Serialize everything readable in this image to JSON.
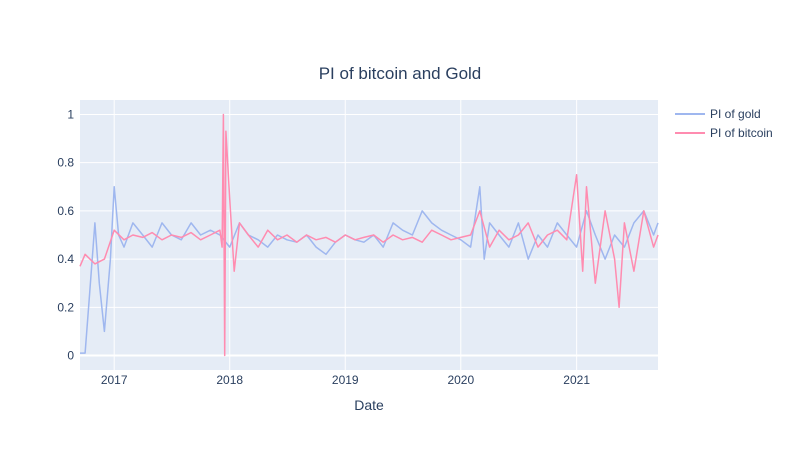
{
  "chart_data": {
    "type": "line",
    "title": "PI of bitcoin and Gold",
    "xlabel": "Date",
    "ylabel": "",
    "x_range": [
      "2016-09-15",
      "2021-09-15"
    ],
    "ylim": [
      -0.06,
      1.06
    ],
    "x_ticks": [
      {
        "date": "2017-01-01",
        "label": "2017"
      },
      {
        "date": "2018-01-01",
        "label": "2018"
      },
      {
        "date": "2019-01-01",
        "label": "2019"
      },
      {
        "date": "2020-01-01",
        "label": "2020"
      },
      {
        "date": "2021-01-01",
        "label": "2021"
      }
    ],
    "y_ticks": [
      0,
      0.2,
      0.4,
      0.6,
      0.8,
      1
    ],
    "grid": true,
    "legend_position": "top-right",
    "background": "#e5ecf6",
    "series": [
      {
        "name": "PI of gold",
        "color": "#9fb7ef",
        "x": [
          "2016-09-15",
          "2016-10-01",
          "2016-10-15",
          "2016-11-01",
          "2016-11-15",
          "2016-12-01",
          "2016-12-20",
          "2017-01-01",
          "2017-01-15",
          "2017-02-01",
          "2017-03-01",
          "2017-04-01",
          "2017-05-01",
          "2017-06-01",
          "2017-07-01",
          "2017-08-01",
          "2017-09-01",
          "2017-10-01",
          "2017-11-01",
          "2017-12-01",
          "2018-01-01",
          "2018-02-01",
          "2018-03-01",
          "2018-04-01",
          "2018-05-01",
          "2018-06-01",
          "2018-07-01",
          "2018-08-01",
          "2018-09-01",
          "2018-10-01",
          "2018-11-01",
          "2018-12-01",
          "2019-01-01",
          "2019-02-01",
          "2019-03-01",
          "2019-04-01",
          "2019-05-01",
          "2019-06-01",
          "2019-07-01",
          "2019-08-01",
          "2019-09-01",
          "2019-10-01",
          "2019-11-01",
          "2019-12-01",
          "2020-01-01",
          "2020-02-01",
          "2020-03-01",
          "2020-03-15",
          "2020-04-01",
          "2020-05-01",
          "2020-06-01",
          "2020-07-01",
          "2020-08-01",
          "2020-09-01",
          "2020-10-01",
          "2020-11-01",
          "2020-12-01",
          "2021-01-01",
          "2021-02-01",
          "2021-03-01",
          "2021-04-01",
          "2021-05-01",
          "2021-06-01",
          "2021-07-01",
          "2021-08-01",
          "2021-09-01",
          "2021-09-15"
        ],
        "values": [
          0.01,
          0.01,
          0.25,
          0.55,
          0.3,
          0.1,
          0.4,
          0.7,
          0.5,
          0.45,
          0.55,
          0.5,
          0.45,
          0.55,
          0.5,
          0.48,
          0.55,
          0.5,
          0.52,
          0.5,
          0.45,
          0.55,
          0.5,
          0.48,
          0.45,
          0.5,
          0.48,
          0.47,
          0.5,
          0.45,
          0.42,
          0.47,
          0.5,
          0.48,
          0.47,
          0.5,
          0.45,
          0.55,
          0.52,
          0.5,
          0.6,
          0.55,
          0.52,
          0.5,
          0.48,
          0.45,
          0.7,
          0.4,
          0.55,
          0.5,
          0.45,
          0.55,
          0.4,
          0.5,
          0.45,
          0.55,
          0.5,
          0.45,
          0.6,
          0.5,
          0.4,
          0.5,
          0.45,
          0.55,
          0.6,
          0.5,
          0.55
        ]
      },
      {
        "name": "PI of bitcoin",
        "color": "#ff8cb0",
        "x": [
          "2016-09-15",
          "2016-10-01",
          "2016-11-01",
          "2016-12-01",
          "2017-01-01",
          "2017-02-01",
          "2017-03-01",
          "2017-04-01",
          "2017-05-01",
          "2017-06-01",
          "2017-07-01",
          "2017-08-01",
          "2017-09-01",
          "2017-10-01",
          "2017-11-01",
          "2017-12-01",
          "2017-12-08",
          "2017-12-12",
          "2017-12-16",
          "2017-12-20",
          "2018-01-01",
          "2018-01-15",
          "2018-02-01",
          "2018-03-01",
          "2018-04-01",
          "2018-05-01",
          "2018-06-01",
          "2018-07-01",
          "2018-08-01",
          "2018-09-01",
          "2018-10-01",
          "2018-11-01",
          "2018-12-01",
          "2019-01-01",
          "2019-02-01",
          "2019-03-01",
          "2019-04-01",
          "2019-05-01",
          "2019-06-01",
          "2019-07-01",
          "2019-08-01",
          "2019-09-01",
          "2019-10-01",
          "2019-11-01",
          "2019-12-01",
          "2020-01-01",
          "2020-02-01",
          "2020-03-01",
          "2020-04-01",
          "2020-05-01",
          "2020-06-01",
          "2020-07-01",
          "2020-08-01",
          "2020-09-01",
          "2020-10-01",
          "2020-11-01",
          "2020-12-01",
          "2021-01-01",
          "2021-01-20",
          "2021-02-01",
          "2021-03-01",
          "2021-04-01",
          "2021-05-01",
          "2021-05-15",
          "2021-06-01",
          "2021-07-01",
          "2021-08-01",
          "2021-09-01",
          "2021-09-15"
        ],
        "values": [
          0.37,
          0.42,
          0.38,
          0.4,
          0.52,
          0.48,
          0.5,
          0.49,
          0.51,
          0.48,
          0.5,
          0.49,
          0.51,
          0.48,
          0.5,
          0.52,
          0.45,
          1.0,
          0.0,
          0.93,
          0.65,
          0.35,
          0.55,
          0.5,
          0.45,
          0.52,
          0.48,
          0.5,
          0.47,
          0.5,
          0.48,
          0.49,
          0.47,
          0.5,
          0.48,
          0.49,
          0.5,
          0.47,
          0.5,
          0.48,
          0.49,
          0.47,
          0.52,
          0.5,
          0.48,
          0.49,
          0.5,
          0.6,
          0.45,
          0.52,
          0.48,
          0.5,
          0.55,
          0.45,
          0.5,
          0.52,
          0.48,
          0.75,
          0.35,
          0.7,
          0.3,
          0.6,
          0.4,
          0.2,
          0.55,
          0.35,
          0.6,
          0.45,
          0.5
        ]
      }
    ]
  }
}
